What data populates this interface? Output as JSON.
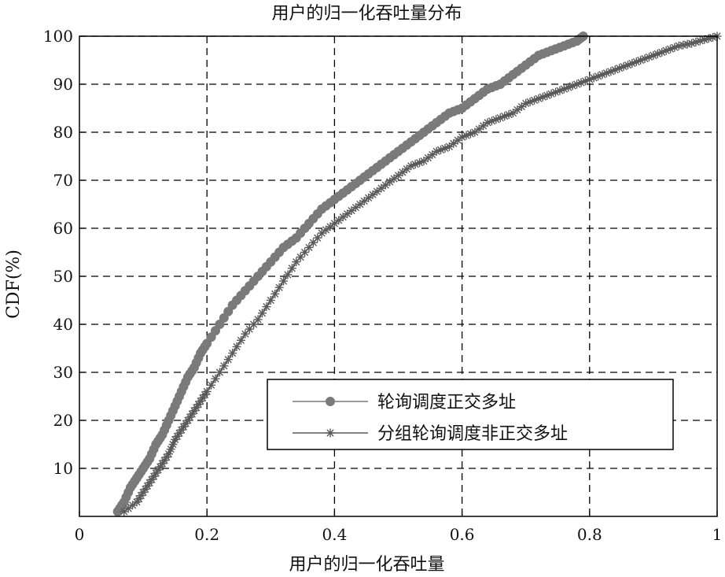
{
  "chart_data": {
    "type": "line",
    "title": "用户的归一化吞吐量分布",
    "xlabel": "用户的归一化吞吐量",
    "ylabel": "CDF(%)",
    "xlim": [
      0,
      1
    ],
    "ylim": [
      0,
      100
    ],
    "x_ticks": [
      "0",
      "0.2",
      "0.4",
      "0.6",
      "0.8",
      "1"
    ],
    "y_ticks": [
      "10",
      "20",
      "30",
      "40",
      "50",
      "60",
      "70",
      "80",
      "90",
      "100"
    ],
    "grid": true,
    "legend_position": "lower-right",
    "series": [
      {
        "name": "轮询调度正交多址",
        "marker": "dot",
        "color": "#7a7a7a",
        "points": [
          [
            0.06,
            1
          ],
          [
            0.07,
            3
          ],
          [
            0.08,
            6
          ],
          [
            0.09,
            8
          ],
          [
            0.1,
            10
          ],
          [
            0.11,
            12
          ],
          [
            0.12,
            15
          ],
          [
            0.13,
            17
          ],
          [
            0.14,
            20
          ],
          [
            0.15,
            23
          ],
          [
            0.16,
            26
          ],
          [
            0.17,
            29
          ],
          [
            0.18,
            31
          ],
          [
            0.19,
            34
          ],
          [
            0.2,
            36
          ],
          [
            0.22,
            40
          ],
          [
            0.24,
            44
          ],
          [
            0.26,
            47
          ],
          [
            0.28,
            50
          ],
          [
            0.3,
            53
          ],
          [
            0.32,
            56
          ],
          [
            0.34,
            58
          ],
          [
            0.36,
            61
          ],
          [
            0.38,
            64
          ],
          [
            0.4,
            66
          ],
          [
            0.42,
            68
          ],
          [
            0.44,
            70
          ],
          [
            0.46,
            72
          ],
          [
            0.48,
            74
          ],
          [
            0.5,
            76
          ],
          [
            0.52,
            78
          ],
          [
            0.54,
            80
          ],
          [
            0.56,
            82
          ],
          [
            0.58,
            84
          ],
          [
            0.6,
            85
          ],
          [
            0.62,
            87
          ],
          [
            0.64,
            89
          ],
          [
            0.66,
            90
          ],
          [
            0.68,
            92
          ],
          [
            0.7,
            94
          ],
          [
            0.72,
            96
          ],
          [
            0.74,
            97
          ],
          [
            0.76,
            98
          ],
          [
            0.78,
            99
          ],
          [
            0.79,
            100
          ]
        ]
      },
      {
        "name": "分组轮询调度非正交多址",
        "marker": "star",
        "color": "#5a5a5a",
        "points": [
          [
            0.07,
            1
          ],
          [
            0.09,
            3
          ],
          [
            0.1,
            5
          ],
          [
            0.11,
            7
          ],
          [
            0.12,
            9
          ],
          [
            0.13,
            11
          ],
          [
            0.14,
            13
          ],
          [
            0.15,
            16
          ],
          [
            0.16,
            18
          ],
          [
            0.17,
            20
          ],
          [
            0.18,
            22
          ],
          [
            0.19,
            24
          ],
          [
            0.2,
            26
          ],
          [
            0.22,
            30
          ],
          [
            0.24,
            34
          ],
          [
            0.26,
            38
          ],
          [
            0.28,
            41
          ],
          [
            0.3,
            45
          ],
          [
            0.32,
            49
          ],
          [
            0.34,
            53
          ],
          [
            0.36,
            56
          ],
          [
            0.38,
            59
          ],
          [
            0.4,
            61
          ],
          [
            0.42,
            63
          ],
          [
            0.44,
            65
          ],
          [
            0.46,
            67
          ],
          [
            0.48,
            69
          ],
          [
            0.5,
            71
          ],
          [
            0.52,
            73
          ],
          [
            0.54,
            74
          ],
          [
            0.56,
            76
          ],
          [
            0.58,
            77
          ],
          [
            0.6,
            79
          ],
          [
            0.62,
            80
          ],
          [
            0.64,
            82
          ],
          [
            0.66,
            83
          ],
          [
            0.68,
            84
          ],
          [
            0.7,
            86
          ],
          [
            0.72,
            87
          ],
          [
            0.74,
            88
          ],
          [
            0.76,
            89
          ],
          [
            0.78,
            90
          ],
          [
            0.8,
            91
          ],
          [
            0.82,
            92
          ],
          [
            0.84,
            93
          ],
          [
            0.86,
            94
          ],
          [
            0.88,
            95
          ],
          [
            0.9,
            96
          ],
          [
            0.92,
            97
          ],
          [
            0.94,
            98
          ],
          [
            0.96,
            98.5
          ],
          [
            0.98,
            99.3
          ],
          [
            1.0,
            100
          ]
        ]
      }
    ]
  }
}
